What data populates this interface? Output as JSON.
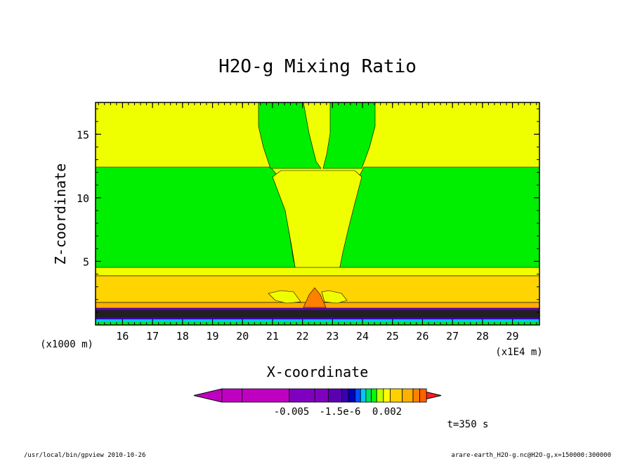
{
  "chart_data": {
    "type": "heatmap",
    "title": "H2O-g Mixing Ratio",
    "xlabel": "X-coordinate",
    "ylabel": "Z-coordinate",
    "x_scale_note": "(x1E4 m)",
    "y_scale_note": "(x1000 m)",
    "xlim": [
      15.1,
      29.9
    ],
    "ylim": [
      0,
      17.5
    ],
    "x_ticks": [
      16,
      17,
      18,
      19,
      20,
      21,
      22,
      23,
      24,
      25,
      26,
      27,
      28,
      29
    ],
    "y_ticks": [
      5,
      10,
      15
    ],
    "x_tick_labels": [
      "16",
      "17",
      "18",
      "19",
      "20",
      "21",
      "22",
      "23",
      "24",
      "25",
      "26",
      "27",
      "28",
      "29"
    ],
    "y_tick_labels": [
      "5",
      "10",
      "15"
    ],
    "colorbar": {
      "colors": [
        "#c000c0",
        "#c000c0",
        "#c000c0",
        "#8000c0",
        "#8000c0",
        "#5a00b0",
        "#3c00b0",
        "#0000c0",
        "#0050ff",
        "#00c8ff",
        "#00e060",
        "#00ff00",
        "#c0ff00",
        "#ffff00",
        "#ffd000",
        "#ffb000",
        "#ff8000",
        "#ff6000",
        "#ff2020"
      ],
      "tick_labels": [
        "-0.005",
        "-1.5e-6",
        "0.002"
      ]
    },
    "regions": [
      {
        "label": "upper-layer",
        "color": "#f0ff00"
      },
      {
        "label": "mid-layer",
        "color": "#00ee00"
      },
      {
        "label": "lower-band-1",
        "color": "#ffe000"
      },
      {
        "label": "lower-band-2",
        "color": "#ffc800"
      },
      {
        "label": "lower-band-3",
        "color": "#ffaa00"
      },
      {
        "label": "surface-peak",
        "color": "#ff8000"
      }
    ],
    "annotation": "t=350 s"
  },
  "footer": {
    "left": "/usr/local/bin/gpview   2010-10-26",
    "right": "arare-earth_H2O-g.nc@H2O-g,x=150000:300000"
  }
}
